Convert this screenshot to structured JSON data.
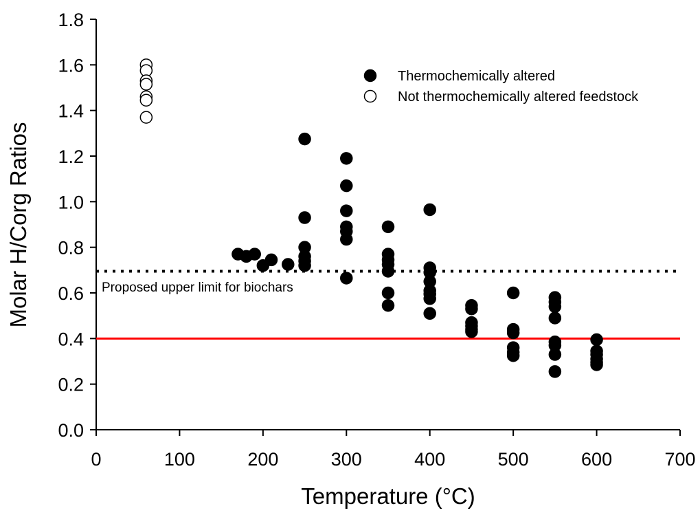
{
  "chart_data": {
    "type": "scatter",
    "xlabel": "Temperature (°C)",
    "ylabel": "Molar H/Corg Ratios",
    "xlim": [
      0,
      700
    ],
    "ylim": [
      0,
      1.8
    ],
    "xticks": [
      "0",
      "100",
      "200",
      "300",
      "400",
      "500",
      "600",
      "700"
    ],
    "yticks": [
      "0.0",
      "0.2",
      "0.4",
      "0.6",
      "0.8",
      "1.0",
      "1.2",
      "1.4",
      "1.6",
      "1.8"
    ],
    "grid": false,
    "legend_position": "top-right",
    "series": [
      {
        "name": "Thermochemically altered",
        "marker": "filled-circle",
        "color": "#000000",
        "points": [
          [
            170,
            0.77
          ],
          [
            180,
            0.76
          ],
          [
            190,
            0.77
          ],
          [
            200,
            0.72
          ],
          [
            210,
            0.745
          ],
          [
            230,
            0.725
          ],
          [
            250,
            1.275
          ],
          [
            250,
            0.93
          ],
          [
            250,
            0.8
          ],
          [
            250,
            0.76
          ],
          [
            250,
            0.74
          ],
          [
            250,
            0.72
          ],
          [
            300,
            1.19
          ],
          [
            300,
            1.07
          ],
          [
            300,
            0.96
          ],
          [
            300,
            0.89
          ],
          [
            300,
            0.87
          ],
          [
            300,
            0.835
          ],
          [
            300,
            0.665
          ],
          [
            350,
            0.89
          ],
          [
            350,
            0.77
          ],
          [
            350,
            0.745
          ],
          [
            350,
            0.725
          ],
          [
            350,
            0.695
          ],
          [
            350,
            0.6
          ],
          [
            350,
            0.545
          ],
          [
            400,
            0.965
          ],
          [
            400,
            0.71
          ],
          [
            400,
            0.69
          ],
          [
            400,
            0.65
          ],
          [
            400,
            0.61
          ],
          [
            400,
            0.595
          ],
          [
            400,
            0.575
          ],
          [
            400,
            0.51
          ],
          [
            450,
            0.545
          ],
          [
            450,
            0.53
          ],
          [
            450,
            0.47
          ],
          [
            450,
            0.455
          ],
          [
            450,
            0.44
          ],
          [
            450,
            0.43
          ],
          [
            500,
            0.6
          ],
          [
            500,
            0.44
          ],
          [
            500,
            0.425
          ],
          [
            500,
            0.36
          ],
          [
            500,
            0.34
          ],
          [
            500,
            0.325
          ],
          [
            550,
            0.58
          ],
          [
            550,
            0.56
          ],
          [
            550,
            0.54
          ],
          [
            550,
            0.49
          ],
          [
            550,
            0.385
          ],
          [
            550,
            0.37
          ],
          [
            550,
            0.33
          ],
          [
            550,
            0.255
          ],
          [
            600,
            0.395
          ],
          [
            600,
            0.345
          ],
          [
            600,
            0.33
          ],
          [
            600,
            0.31
          ],
          [
            600,
            0.295
          ],
          [
            600,
            0.285
          ]
        ]
      },
      {
        "name": "Not thermochemically altered feedstock",
        "marker": "open-circle",
        "color": "#000000",
        "points": [
          [
            60,
            1.6
          ],
          [
            60,
            1.575
          ],
          [
            60,
            1.53
          ],
          [
            60,
            1.515
          ],
          [
            60,
            1.46
          ],
          [
            60,
            1.445
          ],
          [
            60,
            1.37
          ]
        ]
      }
    ],
    "reference_lines": [
      {
        "y": 0.695,
        "style": "dotted",
        "color": "#000000",
        "label": "Proposed upper limit for biochars"
      },
      {
        "y": 0.4,
        "style": "solid",
        "color": "#ff0000",
        "label": ""
      }
    ]
  }
}
